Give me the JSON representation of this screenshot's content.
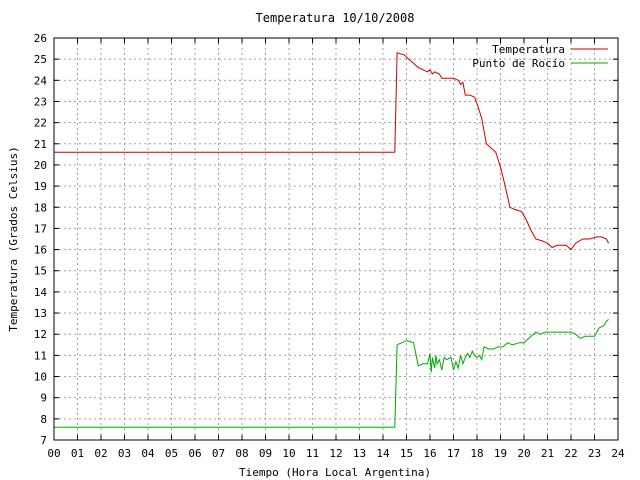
{
  "chart_data": {
    "type": "line",
    "title": "Temperatura 10/10/2008",
    "xlabel": "Tiempo (Hora Local Argentina)",
    "ylabel": "Temperatura (Grados Celsius)",
    "xlim": [
      0,
      24
    ],
    "ylim": [
      7,
      26
    ],
    "x_ticks": [
      "00",
      "01",
      "02",
      "03",
      "04",
      "05",
      "06",
      "07",
      "08",
      "09",
      "10",
      "11",
      "12",
      "13",
      "14",
      "15",
      "16",
      "17",
      "18",
      "19",
      "20",
      "21",
      "22",
      "23",
      "24"
    ],
    "y_ticks": [
      7,
      8,
      9,
      10,
      11,
      12,
      13,
      14,
      15,
      16,
      17,
      18,
      19,
      20,
      21,
      22,
      23,
      24,
      25,
      26
    ],
    "grid": true,
    "legend_position": "top-right",
    "series": [
      {
        "name": "Temperatura",
        "color": "#cc0000",
        "points": [
          [
            0,
            20.6
          ],
          [
            14.5,
            20.6
          ],
          [
            14.6,
            25.3
          ],
          [
            14.9,
            25.2
          ],
          [
            15.1,
            25.0
          ],
          [
            15.3,
            24.8
          ],
          [
            15.5,
            24.6
          ],
          [
            15.7,
            24.5
          ],
          [
            15.9,
            24.4
          ],
          [
            16.0,
            24.5
          ],
          [
            16.1,
            24.3
          ],
          [
            16.2,
            24.4
          ],
          [
            16.4,
            24.3
          ],
          [
            16.5,
            24.1
          ],
          [
            16.8,
            24.1
          ],
          [
            17.0,
            24.1
          ],
          [
            17.2,
            24.0
          ],
          [
            17.3,
            23.8
          ],
          [
            17.4,
            23.9
          ],
          [
            17.5,
            23.3
          ],
          [
            17.7,
            23.3
          ],
          [
            17.9,
            23.2
          ],
          [
            18.0,
            22.9
          ],
          [
            18.2,
            22.2
          ],
          [
            18.4,
            21.0
          ],
          [
            18.6,
            20.8
          ],
          [
            18.8,
            20.6
          ],
          [
            19.0,
            19.9
          ],
          [
            19.2,
            19.0
          ],
          [
            19.4,
            18.0
          ],
          [
            19.6,
            17.9
          ],
          [
            19.9,
            17.8
          ],
          [
            20.1,
            17.4
          ],
          [
            20.3,
            16.9
          ],
          [
            20.5,
            16.5
          ],
          [
            20.8,
            16.4
          ],
          [
            21.0,
            16.3
          ],
          [
            21.2,
            16.1
          ],
          [
            21.4,
            16.2
          ],
          [
            21.8,
            16.2
          ],
          [
            22.0,
            16.0
          ],
          [
            22.2,
            16.3
          ],
          [
            22.5,
            16.5
          ],
          [
            22.8,
            16.5
          ],
          [
            23.1,
            16.6
          ],
          [
            23.3,
            16.6
          ],
          [
            23.5,
            16.5
          ],
          [
            23.6,
            16.3
          ]
        ]
      },
      {
        "name": "Punto de Rocío",
        "color": "#00aa00",
        "points": [
          [
            0,
            7.6
          ],
          [
            14.5,
            7.6
          ],
          [
            14.6,
            11.5
          ],
          [
            14.8,
            11.6
          ],
          [
            15.0,
            11.7
          ],
          [
            15.3,
            11.6
          ],
          [
            15.5,
            10.5
          ],
          [
            15.7,
            10.6
          ],
          [
            15.9,
            10.6
          ],
          [
            16.0,
            11.1
          ],
          [
            16.05,
            10.2
          ],
          [
            16.1,
            10.9
          ],
          [
            16.2,
            10.4
          ],
          [
            16.25,
            11.0
          ],
          [
            16.3,
            10.6
          ],
          [
            16.4,
            10.8
          ],
          [
            16.5,
            10.3
          ],
          [
            16.6,
            10.9
          ],
          [
            16.7,
            10.8
          ],
          [
            16.9,
            10.9
          ],
          [
            17.0,
            10.3
          ],
          [
            17.1,
            10.7
          ],
          [
            17.2,
            10.4
          ],
          [
            17.3,
            11.0
          ],
          [
            17.4,
            10.6
          ],
          [
            17.5,
            10.9
          ],
          [
            17.6,
            11.1
          ],
          [
            17.7,
            10.9
          ],
          [
            17.8,
            11.2
          ],
          [
            17.9,
            11.0
          ],
          [
            18.0,
            10.9
          ],
          [
            18.1,
            11.0
          ],
          [
            18.2,
            10.8
          ],
          [
            18.3,
            11.4
          ],
          [
            18.5,
            11.3
          ],
          [
            18.7,
            11.3
          ],
          [
            18.9,
            11.4
          ],
          [
            19.1,
            11.4
          ],
          [
            19.3,
            11.6
          ],
          [
            19.5,
            11.5
          ],
          [
            19.8,
            11.6
          ],
          [
            20.0,
            11.6
          ],
          [
            20.2,
            11.8
          ],
          [
            20.3,
            11.9
          ],
          [
            20.5,
            12.1
          ],
          [
            20.7,
            12.0
          ],
          [
            20.9,
            12.1
          ],
          [
            21.2,
            12.1
          ],
          [
            21.5,
            12.1
          ],
          [
            21.8,
            12.1
          ],
          [
            22.0,
            12.1
          ],
          [
            22.2,
            12.0
          ],
          [
            22.4,
            11.8
          ],
          [
            22.6,
            11.9
          ],
          [
            22.8,
            11.9
          ],
          [
            23.0,
            11.9
          ],
          [
            23.2,
            12.3
          ],
          [
            23.4,
            12.4
          ],
          [
            23.5,
            12.6
          ],
          [
            23.6,
            12.7
          ]
        ]
      }
    ]
  }
}
